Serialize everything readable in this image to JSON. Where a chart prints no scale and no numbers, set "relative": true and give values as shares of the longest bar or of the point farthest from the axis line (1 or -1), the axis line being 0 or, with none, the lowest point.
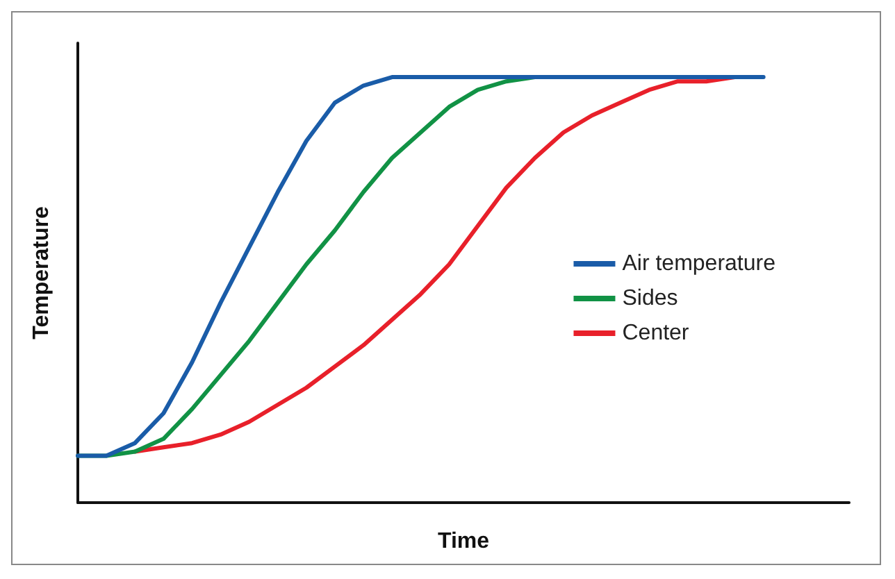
{
  "chart_data": {
    "type": "line",
    "relative": true,
    "xlabel": "Time",
    "ylabel": "Temperature",
    "legend": "right",
    "grid": false,
    "marker": "none",
    "line_style": "solid",
    "categories": [
      null,
      null,
      null,
      null,
      null,
      null,
      null,
      null,
      null,
      null,
      null,
      null,
      null,
      null,
      null,
      null,
      null,
      null,
      null,
      null,
      null,
      null,
      null,
      null,
      null,
      null,
      null,
      null
    ],
    "series": [
      {
        "name": "Air temperature",
        "color": "#1a5ca8",
        "values": [
          0.11,
          0.11,
          0.14,
          0.21,
          0.33,
          0.47,
          0.6,
          0.73,
          0.85,
          0.94,
          0.98,
          1,
          1,
          1,
          1,
          1,
          1,
          1,
          1,
          1,
          1,
          1,
          1,
          1,
          1,
          null,
          null,
          null
        ]
      },
      {
        "name": "Sides",
        "color": "#119245",
        "values": [
          0.11,
          0.11,
          0.12,
          0.15,
          0.22,
          0.3,
          0.38,
          0.47,
          0.56,
          0.64,
          0.73,
          0.81,
          0.87,
          0.93,
          0.97,
          0.99,
          1,
          null,
          null,
          null,
          null,
          null,
          null,
          null,
          null,
          null,
          null,
          null
        ]
      },
      {
        "name": "Center",
        "color": "#e8202a",
        "values": [
          null,
          null,
          0.12,
          0.13,
          0.14,
          0.16,
          0.19,
          0.23,
          0.27,
          0.32,
          0.37,
          0.43,
          0.49,
          0.56,
          0.65,
          0.74,
          0.81,
          0.87,
          0.91,
          0.94,
          0.97,
          0.99,
          0.99,
          1,
          null,
          null,
          null,
          null
        ]
      }
    ]
  }
}
